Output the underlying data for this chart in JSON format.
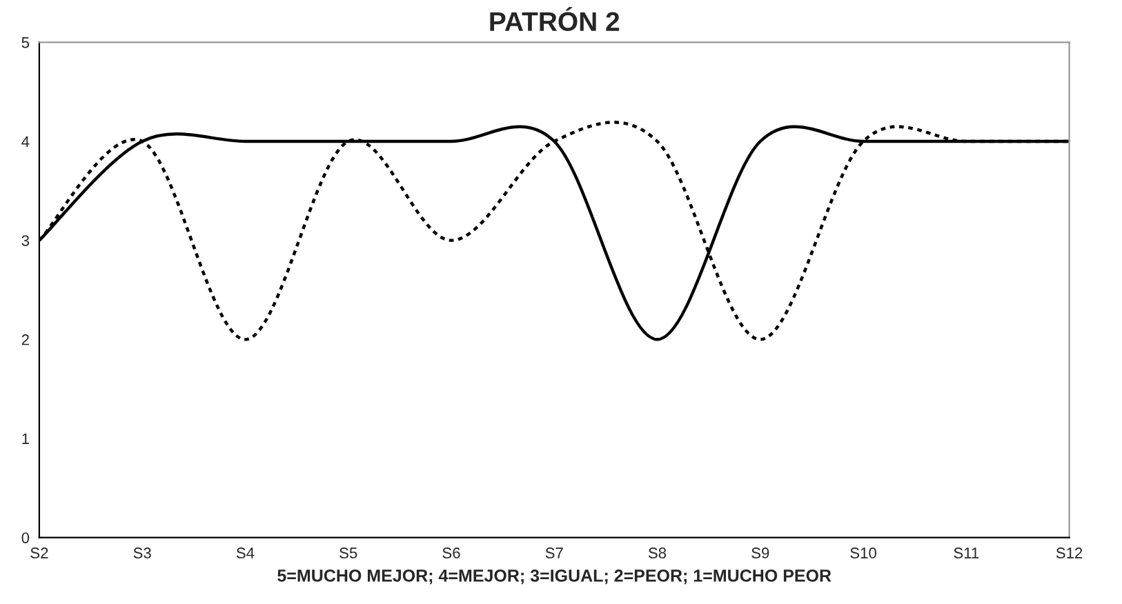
{
  "chart_data": {
    "type": "line",
    "title": "PATRÓN 2",
    "xlabel": "5=MUCHO MEJOR; 4=MEJOR; 3=IGUAL; 2=PEOR; 1=MUCHO PEOR",
    "categories": [
      "S2",
      "S3",
      "S4",
      "S5",
      "S6",
      "S7",
      "S8",
      "S9",
      "S10",
      "S11",
      "S12"
    ],
    "series": [
      {
        "color": "#000000",
        "line_style": "solid",
        "values": [
          3,
          4,
          4,
          4,
          4,
          4,
          2,
          4,
          4,
          4,
          4
        ]
      },
      {
        "color": "#000000",
        "line_style": "dotted",
        "values": [
          3,
          4,
          2,
          4,
          3,
          4,
          4,
          2,
          4,
          4,
          4
        ]
      }
    ],
    "ylim": [
      0,
      5
    ],
    "yticks": [
      0,
      1,
      2,
      3,
      4,
      5
    ],
    "grid": false,
    "marker": "none"
  }
}
